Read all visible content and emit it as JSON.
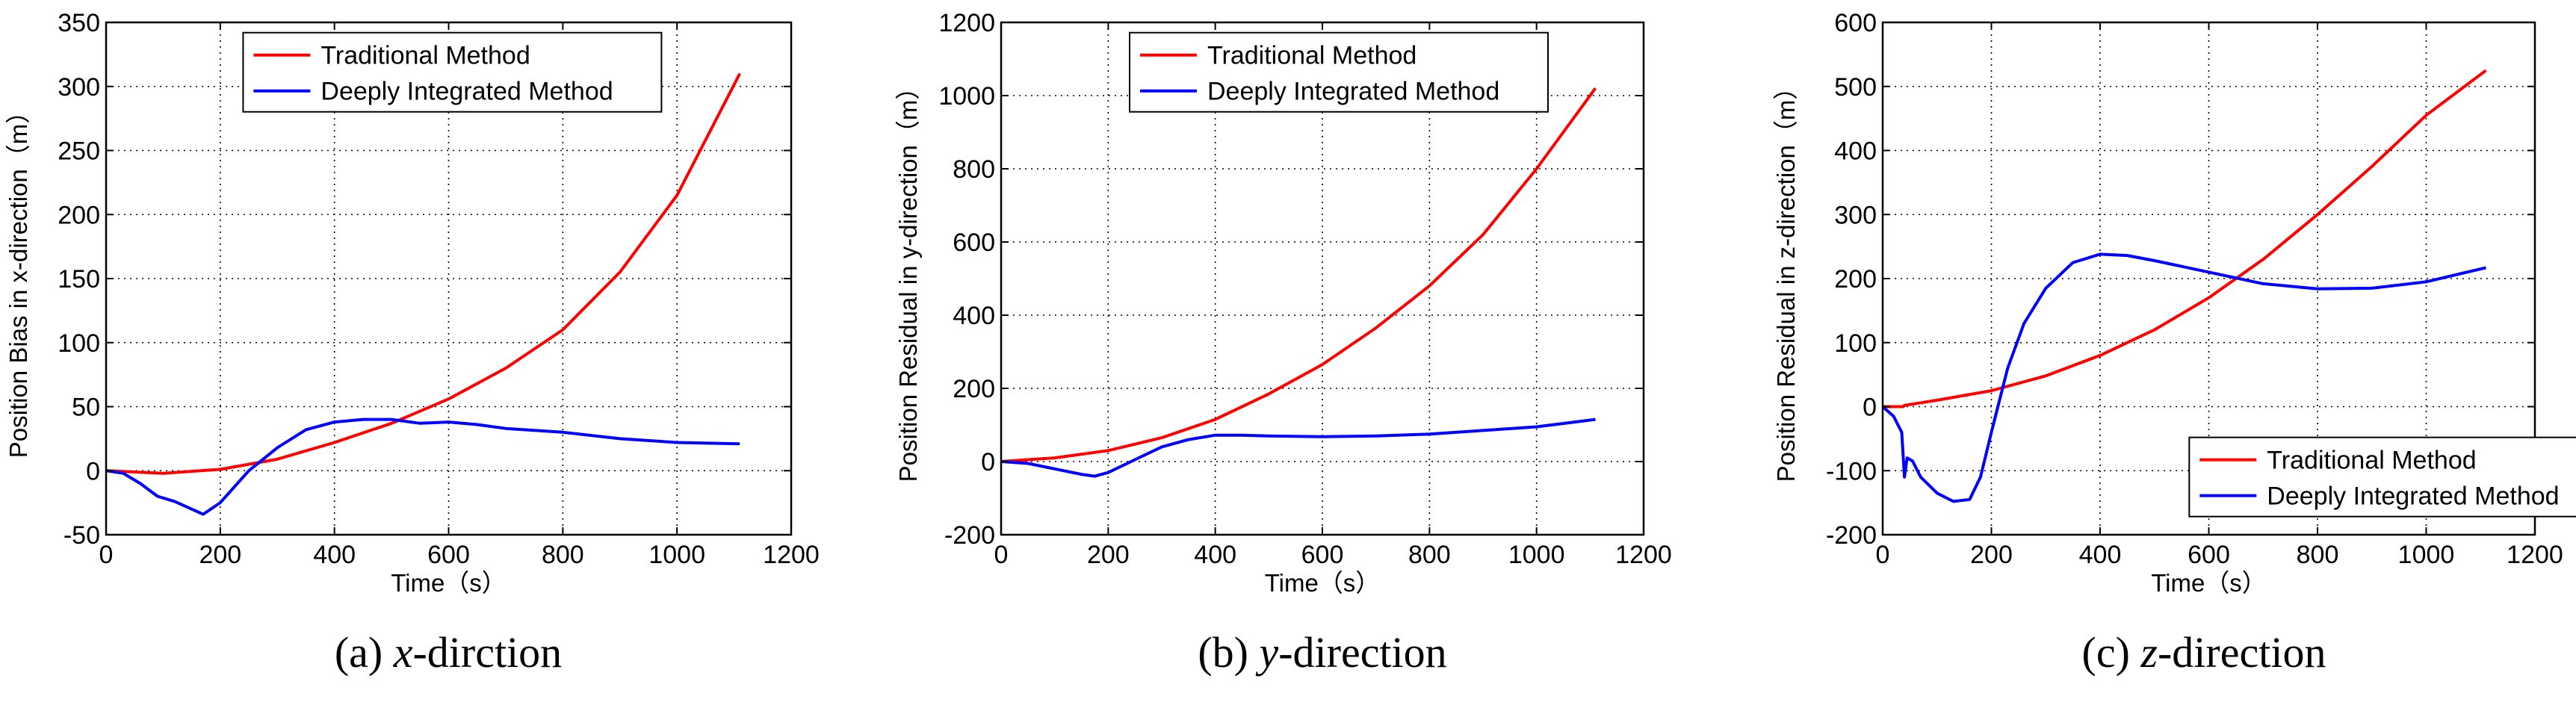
{
  "chart_data": [
    {
      "type": "line",
      "caption": {
        "prefix": "(a) ",
        "var": "x",
        "suffix": "-dirction"
      },
      "xlabel": "Time（s）",
      "ylabel": "Position Bias in x-direction（m）",
      "xlim": [
        0,
        1200
      ],
      "ylim": [
        -50,
        350
      ],
      "xticks": [
        0,
        200,
        400,
        600,
        800,
        1000,
        1200
      ],
      "yticks": [
        -50,
        0,
        50,
        100,
        150,
        200,
        250,
        300,
        350
      ],
      "grid": true,
      "legend_position": "top-center",
      "series": [
        {
          "name": "Traditional Method",
          "color": "#ff0000",
          "x": [
            0,
            100,
            200,
            300,
            400,
            500,
            600,
            700,
            800,
            900,
            1000,
            1110
          ],
          "y": [
            0,
            -2,
            1,
            9,
            22,
            37,
            56,
            80,
            110,
            155,
            215,
            310
          ]
        },
        {
          "name": "Deeply Integrated Method",
          "color": "#0000ff",
          "x": [
            0,
            30,
            60,
            90,
            120,
            150,
            170,
            200,
            250,
            300,
            350,
            400,
            450,
            500,
            550,
            600,
            650,
            700,
            800,
            900,
            1000,
            1110
          ],
          "y": [
            0,
            -2,
            -10,
            -20,
            -24,
            -30,
            -34,
            -25,
            0,
            18,
            32,
            38,
            40,
            40,
            37,
            38,
            36,
            33,
            30,
            25,
            22,
            21
          ]
        }
      ]
    },
    {
      "type": "line",
      "caption": {
        "prefix": "(b) ",
        "var": "y",
        "suffix": "-direction"
      },
      "xlabel": "Time（s）",
      "ylabel": "Position Residual in y-direction（m）",
      "xlim": [
        0,
        1200
      ],
      "ylim": [
        -200,
        1200
      ],
      "xticks": [
        0,
        200,
        400,
        600,
        800,
        1000,
        1200
      ],
      "yticks": [
        -200,
        0,
        200,
        400,
        600,
        800,
        1000,
        1200
      ],
      "grid": true,
      "legend_position": "top-center",
      "series": [
        {
          "name": "Traditional Method",
          "color": "#ff0000",
          "x": [
            0,
            100,
            200,
            300,
            400,
            500,
            600,
            700,
            800,
            900,
            1000,
            1110
          ],
          "y": [
            0,
            10,
            30,
            65,
            115,
            185,
            265,
            365,
            480,
            620,
            800,
            1020
          ]
        },
        {
          "name": "Deeply Integrated Method",
          "color": "#0000ff",
          "x": [
            0,
            50,
            100,
            150,
            175,
            200,
            250,
            300,
            350,
            400,
            450,
            500,
            600,
            700,
            800,
            900,
            1000,
            1110
          ],
          "y": [
            0,
            -5,
            -20,
            -35,
            -40,
            -30,
            5,
            40,
            60,
            72,
            72,
            70,
            68,
            70,
            75,
            85,
            95,
            115
          ]
        }
      ]
    },
    {
      "type": "line",
      "caption": {
        "prefix": "(c) ",
        "var": "z",
        "suffix": "-direction"
      },
      "xlabel": "Time（s）",
      "ylabel": "Position Residual in z-direction（m）",
      "xlim": [
        0,
        1200
      ],
      "ylim": [
        -200,
        600
      ],
      "xticks": [
        0,
        200,
        400,
        600,
        800,
        1000,
        1200
      ],
      "yticks": [
        -200,
        -100,
        0,
        100,
        200,
        300,
        400,
        500,
        600
      ],
      "grid": true,
      "legend_position": "bottom-right",
      "series": [
        {
          "name": "Traditional Method",
          "color": "#ff0000",
          "x": [
            0,
            38,
            40,
            100,
            200,
            300,
            400,
            500,
            600,
            700,
            800,
            900,
            1000,
            1110
          ],
          "y": [
            0,
            0,
            2,
            10,
            25,
            48,
            80,
            120,
            170,
            230,
            300,
            375,
            455,
            525
          ]
        },
        {
          "name": "Deeply Integrated Method",
          "color": "#0000ff",
          "x": [
            0,
            20,
            35,
            40,
            45,
            55,
            70,
            100,
            130,
            160,
            180,
            200,
            230,
            260,
            300,
            350,
            400,
            450,
            500,
            600,
            700,
            800,
            900,
            1000,
            1110
          ],
          "y": [
            0,
            -15,
            -40,
            -110,
            -80,
            -85,
            -110,
            -135,
            -148,
            -145,
            -110,
            -40,
            60,
            130,
            185,
            225,
            238,
            236,
            228,
            210,
            192,
            184,
            185,
            195,
            217
          ]
        }
      ]
    }
  ]
}
